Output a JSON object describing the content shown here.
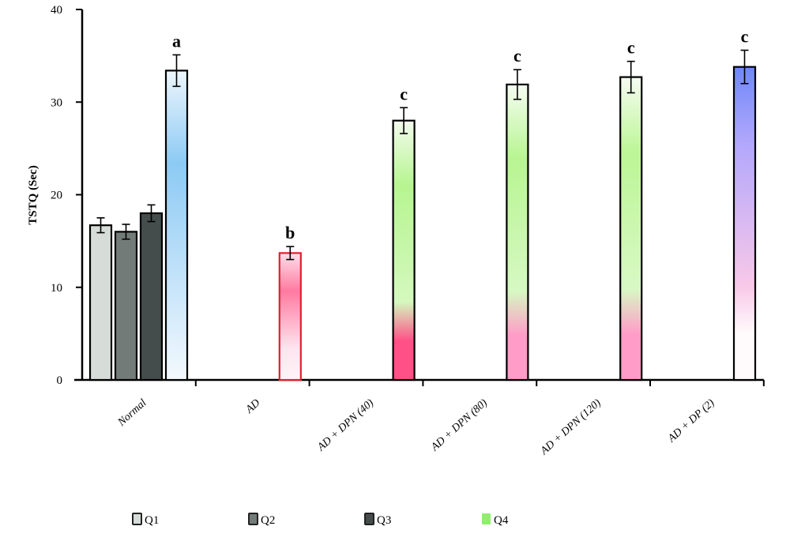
{
  "chart_data": {
    "type": "bar",
    "title": "",
    "xlabel": "",
    "ylabel": "TSTQ (Sec)",
    "ylim": [
      0,
      40
    ],
    "yticks": [
      0,
      10,
      20,
      30,
      40
    ],
    "grid": false,
    "legend_placement": "bottom",
    "categories": [
      "Normal",
      "AD",
      "AD + DPN (40)",
      "AD + DPN (80)",
      "AD + DPN (120)",
      "AD + DP (2)"
    ],
    "series": [
      {
        "name": "Q1",
        "color": "#d6dcd8",
        "values": [
          16.7,
          null,
          null,
          null,
          null,
          null
        ],
        "errors": [
          0.8,
          null,
          null,
          null,
          null,
          null
        ]
      },
      {
        "name": "Q2",
        "color": "#727b78",
        "values": [
          16.0,
          null,
          null,
          null,
          null,
          null
        ],
        "errors": [
          0.8,
          null,
          null,
          null,
          null,
          null
        ]
      },
      {
        "name": "Q3",
        "color": "#454c4c",
        "values": [
          18.0,
          null,
          null,
          null,
          null,
          null
        ],
        "errors": [
          0.9,
          null,
          null,
          null,
          null,
          null
        ]
      },
      {
        "name": "Q4",
        "color": "#8ef06a",
        "values": [
          33.4,
          13.7,
          28.0,
          31.9,
          32.7,
          33.8
        ],
        "errors": [
          1.7,
          0.7,
          1.4,
          1.6,
          1.7,
          1.8
        ]
      }
    ],
    "annotations": [
      "a",
      "b",
      "c",
      "c",
      "c",
      "c"
    ],
    "q4_bar_colors": [
      {
        "stroke": "#000000",
        "stops": [
          "#eef6fc",
          "#8ccaf4",
          "#cfe8fa",
          "#f4f9fd"
        ]
      },
      {
        "stroke": "#e02030",
        "stops": [
          "#fde0ea",
          "#ff7aa0",
          "#fde4ee",
          "#fff4f8"
        ]
      },
      {
        "stroke": "#000000",
        "stops": [
          "#f4fbee",
          "#b6f590",
          "#d4f8be",
          "#ff5088"
        ]
      },
      {
        "stroke": "#000000",
        "stops": [
          "#f6fcf2",
          "#b8f592",
          "#d6f8c2",
          "#ff9cc8"
        ]
      },
      {
        "stroke": "#000000",
        "stops": [
          "#f6fcf2",
          "#bcf696",
          "#d8f8c4",
          "#ff9cc8"
        ]
      },
      {
        "stroke": "#000000",
        "stops": [
          "#6f88f8",
          "#b3a8fc",
          "#f8c8e8",
          "#fffafc"
        ]
      }
    ]
  }
}
